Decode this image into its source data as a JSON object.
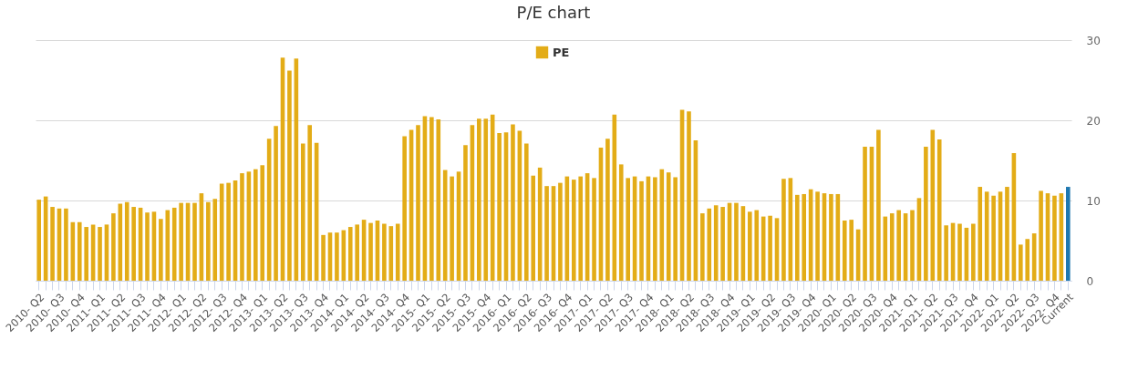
{
  "chart_data": {
    "type": "bar",
    "title": "P/E chart",
    "categories": [
      "2010- Q2",
      null,
      null,
      "2010- Q3",
      null,
      null,
      "2010- Q4",
      null,
      null,
      "2011- Q1",
      null,
      null,
      "2011- Q2",
      null,
      null,
      "2011- Q3",
      null,
      null,
      "2011- Q4",
      null,
      null,
      "2012- Q1",
      null,
      null,
      "2012- Q2",
      null,
      null,
      "2012- Q3",
      null,
      null,
      "2012- Q4",
      null,
      null,
      "2013- Q1",
      null,
      null,
      "2013- Q2",
      null,
      null,
      "2013- Q3",
      null,
      null,
      "2013- Q4",
      null,
      null,
      "2014- Q1",
      null,
      null,
      "2014- Q2",
      null,
      null,
      "2014- Q3",
      null,
      null,
      "2014- Q4",
      null,
      null,
      "2015- Q1",
      null,
      null,
      "2015- Q2",
      null,
      null,
      "2015- Q3",
      null,
      null,
      "2015- Q4",
      null,
      null,
      "2016- Q1",
      null,
      null,
      "2016- Q2",
      null,
      null,
      "2016- Q3",
      null,
      null,
      "2016- Q4",
      null,
      null,
      "2017- Q1",
      null,
      null,
      "2017- Q2",
      null,
      null,
      "2017- Q3",
      null,
      null,
      "2017- Q4",
      null,
      null,
      "2018- Q1",
      null,
      null,
      "2018- Q2",
      null,
      null,
      "2018- Q3",
      null,
      null,
      "2018- Q4",
      null,
      null,
      "2019- Q1",
      null,
      null,
      "2019- Q2",
      null,
      null,
      "2019- Q3",
      null,
      null,
      "2019- Q4",
      null,
      null,
      "2020- Q1",
      null,
      null,
      "2020- Q2",
      null,
      null,
      "2020- Q3",
      null,
      null,
      "2020- Q4",
      null,
      null,
      "2021- Q1",
      null,
      null,
      "2021- Q2",
      null,
      null,
      "2021- Q3",
      null,
      null,
      "2021- Q4",
      null,
      null,
      "2022- Q1",
      null,
      null,
      "2022- Q2",
      null,
      null,
      "2022- Q3",
      null,
      null,
      "2022- Q4",
      null,
      "Current"
    ],
    "series": [
      {
        "name": "PE",
        "color": "#e3ac17",
        "values": [
          10.1,
          10.5,
          9.2,
          9.0,
          9.0,
          7.3,
          7.3,
          6.7,
          7.0,
          6.7,
          7.0,
          8.4,
          9.6,
          9.8,
          9.2,
          9.1,
          8.5,
          8.6,
          7.7,
          8.8,
          9.1,
          9.7,
          9.7,
          9.7,
          10.9,
          9.8,
          10.2,
          12.1,
          12.2,
          12.5,
          13.4,
          13.6,
          13.9,
          14.4,
          17.7,
          19.3,
          27.8,
          26.2,
          27.7,
          17.1,
          19.4,
          17.2,
          5.7,
          6.0,
          6.0,
          6.3,
          6.7,
          7.0,
          7.6,
          7.2,
          7.5,
          7.1,
          6.8,
          7.1,
          18.0,
          18.8,
          19.4,
          20.5,
          20.4,
          20.1,
          13.8,
          13.0,
          13.6,
          16.9,
          19.4,
          20.2,
          20.2,
          20.7,
          18.4,
          18.5,
          19.5,
          18.7,
          17.1,
          13.1,
          14.1,
          11.8,
          11.8,
          12.2,
          13.0,
          12.6,
          13.0,
          13.4,
          12.8,
          16.6,
          17.7,
          20.7,
          14.5,
          12.8,
          13.0,
          12.4,
          13.0,
          12.9,
          13.9,
          13.5,
          12.9,
          21.3,
          21.1,
          17.5,
          8.4,
          9.0,
          9.4,
          9.2,
          9.7,
          9.7,
          9.3,
          8.6,
          8.8,
          8.0,
          8.1,
          7.8,
          12.7,
          12.8,
          10.7,
          10.8,
          11.4,
          11.1,
          10.9,
          10.8,
          10.8,
          7.5,
          7.6,
          6.4,
          16.7,
          16.7,
          18.8,
          8.0,
          8.4,
          8.8,
          8.4,
          8.8,
          10.3,
          16.7,
          18.8,
          17.6,
          6.9,
          7.2,
          7.1,
          6.6,
          7.1,
          11.7,
          11.1,
          10.6,
          11.1,
          11.7,
          15.9,
          4.5,
          5.2,
          5.9,
          11.2,
          10.9,
          10.6,
          10.9,
          11.7
        ],
        "colors": [
          "#e3ac17",
          "#e3ac17",
          "#e3ac17",
          "#e3ac17",
          "#e3ac17",
          "#e3ac17",
          "#e3ac17",
          "#e3ac17",
          "#e3ac17",
          "#e3ac17",
          "#e3ac17",
          "#e3ac17",
          "#e3ac17",
          "#e3ac17",
          "#e3ac17",
          "#e3ac17",
          "#e3ac17",
          "#e3ac17",
          "#e3ac17",
          "#e3ac17",
          "#e3ac17",
          "#e3ac17",
          "#e3ac17",
          "#e3ac17",
          "#e3ac17",
          "#e3ac17",
          "#e3ac17",
          "#e3ac17",
          "#e3ac17",
          "#e3ac17",
          "#e3ac17",
          "#e3ac17",
          "#e3ac17",
          "#e3ac17",
          "#e3ac17",
          "#e3ac17",
          "#e3ac17",
          "#e3ac17",
          "#e3ac17",
          "#e3ac17",
          "#e3ac17",
          "#e3ac17",
          "#e3ac17",
          "#e3ac17",
          "#e3ac17",
          "#e3ac17",
          "#e3ac17",
          "#e3ac17",
          "#e3ac17",
          "#e3ac17",
          "#e3ac17",
          "#e3ac17",
          "#e3ac17",
          "#e3ac17",
          "#e3ac17",
          "#e3ac17",
          "#e3ac17",
          "#e3ac17",
          "#e3ac17",
          "#e3ac17",
          "#e3ac17",
          "#e3ac17",
          "#e3ac17",
          "#e3ac17",
          "#e3ac17",
          "#e3ac17",
          "#e3ac17",
          "#e3ac17",
          "#e3ac17",
          "#e3ac17",
          "#e3ac17",
          "#e3ac17",
          "#e3ac17",
          "#e3ac17",
          "#e3ac17",
          "#e3ac17",
          "#e3ac17",
          "#e3ac17",
          "#e3ac17",
          "#e3ac17",
          "#e3ac17",
          "#e3ac17",
          "#e3ac17",
          "#e3ac17",
          "#e3ac17",
          "#e3ac17",
          "#e3ac17",
          "#e3ac17",
          "#e3ac17",
          "#e3ac17",
          "#e3ac17",
          "#e3ac17",
          "#e3ac17",
          "#e3ac17",
          "#e3ac17",
          "#e3ac17",
          "#e3ac17",
          "#e3ac17",
          "#e3ac17",
          "#e3ac17",
          "#e3ac17",
          "#e3ac17",
          "#e3ac17",
          "#e3ac17",
          "#e3ac17",
          "#e3ac17",
          "#e3ac17",
          "#e3ac17",
          "#e3ac17",
          "#e3ac17",
          "#e3ac17",
          "#e3ac17",
          "#e3ac17",
          "#e3ac17",
          "#e3ac17",
          "#e3ac17",
          "#e3ac17",
          "#e3ac17",
          "#e3ac17",
          "#e3ac17",
          "#e3ac17",
          "#e3ac17",
          "#e3ac17",
          "#e3ac17",
          "#e3ac17",
          "#e3ac17",
          "#e3ac17",
          "#e3ac17",
          "#e3ac17",
          "#e3ac17",
          "#e3ac17",
          "#e3ac17",
          "#e3ac17",
          "#e3ac17",
          "#e3ac17",
          "#e3ac17",
          "#e3ac17",
          "#e3ac17",
          "#e3ac17",
          "#e3ac17",
          "#e3ac17",
          "#e3ac17",
          "#e3ac17",
          "#e3ac17",
          "#e3ac17",
          "#e3ac17",
          "#e3ac17",
          "#e3ac17",
          "#e3ac17",
          "#e3ac17",
          "#e3ac17",
          "#e3ac17",
          "#1f78b0"
        ]
      }
    ],
    "ylim": [
      0,
      30
    ],
    "yticks": [
      0,
      10,
      20,
      30
    ],
    "grid": "y",
    "legend": "top"
  }
}
